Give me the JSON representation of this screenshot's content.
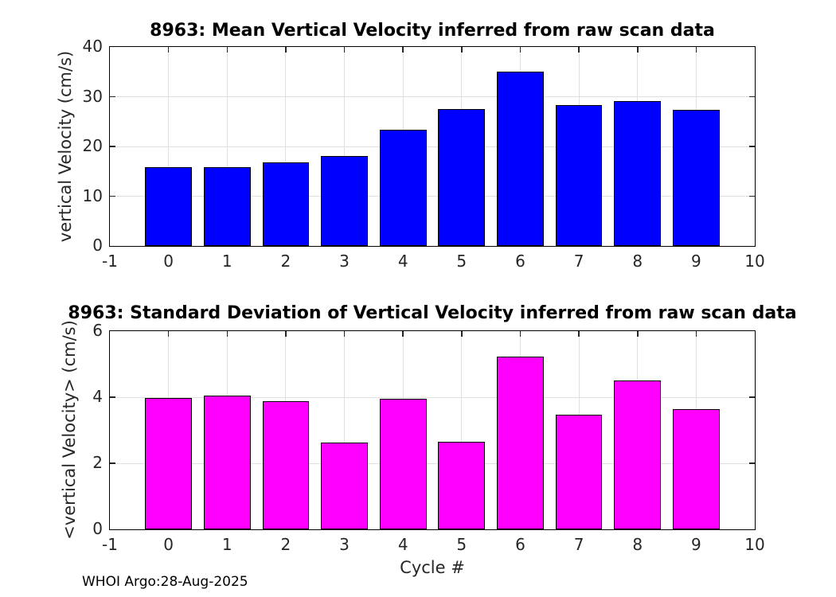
{
  "figure": {
    "footer": "WHOI Argo:28-Aug-2025",
    "xlabel": "Cycle #",
    "background_color": "#ffffff",
    "grid_color": "#e0e0e0",
    "axis_color": "#262626"
  },
  "chart_data": [
    {
      "type": "bar",
      "title": "8963: Mean Vertical Velocity inferred from raw scan data",
      "ylabel": "vertical Velocity (cm/s)",
      "xlabel": "",
      "bar_color": "#0000ff",
      "bar_edge_color": "#000000",
      "bar_width": 0.8,
      "categories": [
        0,
        1,
        2,
        3,
        4,
        5,
        6,
        7,
        8,
        9
      ],
      "values": [
        15.9,
        15.8,
        16.8,
        18.1,
        23.4,
        27.5,
        35.0,
        28.3,
        29.2,
        27.4
      ],
      "xlim": [
        -1,
        10
      ],
      "ylim": [
        0,
        40
      ],
      "xticks": [
        -1,
        0,
        1,
        2,
        3,
        4,
        5,
        6,
        7,
        8,
        9,
        10
      ],
      "yticks": [
        0,
        10,
        20,
        30,
        40
      ],
      "grid": true,
      "legend": "none"
    },
    {
      "type": "bar",
      "title": "8963: Standard Deviation of Vertical Velocity inferred from raw scan data",
      "ylabel": "<vertical Velocity> (cm/s)",
      "xlabel": "Cycle #",
      "bar_color": "#ff00ff",
      "bar_edge_color": "#000000",
      "bar_width": 0.8,
      "categories": [
        0,
        1,
        2,
        3,
        4,
        5,
        6,
        7,
        8,
        9
      ],
      "values": [
        3.98,
        4.05,
        3.88,
        2.62,
        3.95,
        2.66,
        5.22,
        3.47,
        4.5,
        3.64
      ],
      "xlim": [
        -1,
        10
      ],
      "ylim": [
        0,
        6
      ],
      "xticks": [
        -1,
        0,
        1,
        2,
        3,
        4,
        5,
        6,
        7,
        8,
        9,
        10
      ],
      "yticks": [
        0,
        2,
        4,
        6
      ],
      "grid": true,
      "legend": "none"
    }
  ]
}
